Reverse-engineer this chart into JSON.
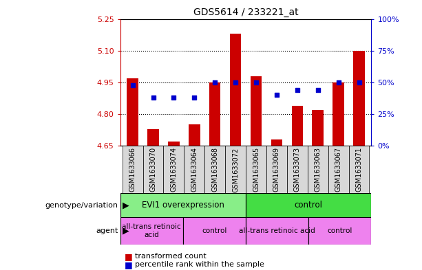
{
  "title": "GDS5614 / 233221_at",
  "samples": [
    "GSM1633066",
    "GSM1633070",
    "GSM1633074",
    "GSM1633064",
    "GSM1633068",
    "GSM1633072",
    "GSM1633065",
    "GSM1633069",
    "GSM1633073",
    "GSM1633063",
    "GSM1633067",
    "GSM1633071"
  ],
  "bar_values": [
    4.97,
    4.73,
    4.67,
    4.75,
    4.95,
    5.18,
    4.98,
    4.68,
    4.84,
    4.82,
    4.95,
    5.1
  ],
  "dot_values": [
    48,
    38,
    38,
    38,
    50,
    50,
    50,
    40,
    44,
    44,
    50,
    50
  ],
  "ylim_left": [
    4.65,
    5.25
  ],
  "ylim_right": [
    0,
    100
  ],
  "yticks_left": [
    4.65,
    4.8,
    4.95,
    5.1,
    5.25
  ],
  "yticks_right": [
    0,
    25,
    50,
    75,
    100
  ],
  "bar_color": "#cc0000",
  "dot_color": "#0000cc",
  "bar_bottom": 4.65,
  "genotype_groups": [
    {
      "label": "EVI1 overexpression",
      "start": 0,
      "end": 6,
      "color": "#88ee88"
    },
    {
      "label": "control",
      "start": 6,
      "end": 12,
      "color": "#44dd44"
    }
  ],
  "agent_groups": [
    {
      "label": "all-trans retinoic\nacid",
      "start": 0,
      "end": 3,
      "color": "#ee82ee"
    },
    {
      "label": "control",
      "start": 3,
      "end": 6,
      "color": "#ee82ee"
    },
    {
      "label": "all-trans retinoic acid",
      "start": 6,
      "end": 9,
      "color": "#ee82ee"
    },
    {
      "label": "control",
      "start": 9,
      "end": 12,
      "color": "#ee82ee"
    }
  ],
  "tick_color_left": "#cc0000",
  "tick_color_right": "#0000cc",
  "bg_color": "#d8d8d8",
  "plot_bg": "#ffffff"
}
